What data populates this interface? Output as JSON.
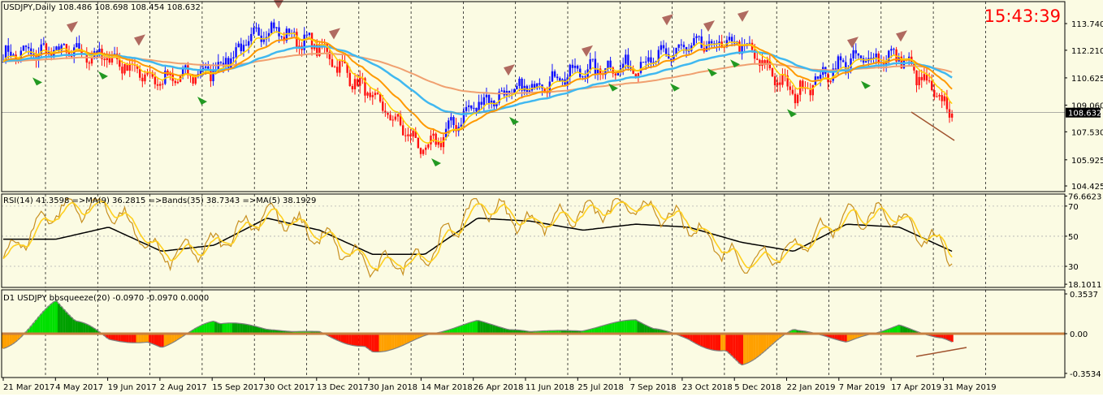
{
  "colors": {
    "background": "#fbfbe3",
    "grid": "#000000",
    "bull_candle": "#1010ff",
    "bear_candle": "#ff1010",
    "ema_fast": "#ffd000",
    "ema_mid": "#ff9900",
    "ema_blue": "#40b8f0",
    "sma_slow": "#f0a070",
    "rsi_line": "#c89020",
    "rsi_ma": "#ffd020",
    "rsi_bands": "#000000",
    "histo_green_dark": "#00a000",
    "histo_green_light": "#00e000",
    "histo_red": "#ff1000",
    "histo_orange": "#ffa000",
    "clock": "#ff0000",
    "divergence": "#a0522d"
  },
  "price_panel": {
    "header": "USDJPY,Daily  108.486 108.698 108.454 108.632",
    "clock": "15:43:39",
    "current_price": "108.632",
    "y_labels": [
      "113.740",
      "112.210",
      "110.625",
      "109.060",
      "107.530",
      "105.925",
      "104.425"
    ],
    "y_values": [
      113.74,
      112.21,
      110.625,
      109.06,
      107.53,
      105.925,
      104.425
    ],
    "y_range": [
      104.1,
      115.0
    ],
    "current_value": 108.632
  },
  "rsi_panel": {
    "header": "RSI(14) 41.3598  =>MA(9) 36.2815  =>Bands(35) 38.7343  =>MA(5) 38.1929",
    "y_labels": [
      "76.6623",
      "70",
      "50",
      "30",
      "18.1011"
    ],
    "y_values": [
      76.6623,
      70,
      50,
      30,
      18.1011
    ],
    "y_range": [
      16,
      78
    ]
  },
  "squeeze_panel": {
    "header": "D1 USDJPY bbsqueeze(20) -0.0970 -0.0970 0.0000",
    "y_labels": [
      "0.3537",
      "0.00",
      "-0.3534"
    ],
    "y_values": [
      0.3537,
      0.0,
      -0.3534
    ],
    "y_range": [
      -0.39,
      0.39
    ]
  },
  "time_axis": {
    "labels": [
      "21 Mar 2017",
      "4 May 2017",
      "19 Jun 2017",
      "2 Aug 2017",
      "15 Sep 2017",
      "30 Oct 2017",
      "13 Dec 2017",
      "30 Jan 2018",
      "14 Mar 2018",
      "26 Apr 2018",
      "11 Jun 2018",
      "25 Jul 2018",
      "7 Sep 2018",
      "23 Oct 2018",
      "5 Dec 2018",
      "22 Jan 2019",
      "7 Mar 2019",
      "17 Apr 2019",
      "31 May 2019"
    ]
  },
  "chart_data": [
    {
      "type": "line",
      "name": "USDJPY Daily",
      "title": "USDJPY,Daily",
      "x": [
        "21 Mar 2017",
        "4 May 2017",
        "19 Jun 2017",
        "2 Aug 2017",
        "15 Sep 2017",
        "30 Oct 2017",
        "13 Dec 2017",
        "30 Jan 2018",
        "14 Mar 2018",
        "26 Apr 2018",
        "11 Jun 2018",
        "25 Jul 2018",
        "7 Sep 2018",
        "23 Oct 2018",
        "5 Dec 2018",
        "22 Jan 2019",
        "7 Mar 2019",
        "17 Apr 2019",
        "31 May 2019"
      ],
      "series": [
        {
          "values": [
            111.9,
            112.2,
            111.8,
            110.4,
            111.1,
            113.5,
            112.4,
            109.5,
            106.4,
            109.2,
            110.1,
            111.1,
            111.3,
            112.4,
            112.6,
            109.7,
            111.6,
            111.9,
            108.6
          ]
        }
      ],
      "ylim": [
        104.425,
        113.74
      ],
      "grid": true
    },
    {
      "type": "line",
      "title": "RSI(14) 41.3598  =>MA(9) 36.2815  =>Bands(35) 38.7343  =>MA(5) 38.1929",
      "x": [
        "21 Mar 2017",
        "4 May 2017",
        "19 Jun 2017",
        "2 Aug 2017",
        "15 Sep 2017",
        "30 Oct 2017",
        "13 Dec 2017",
        "30 Jan 2018",
        "14 Mar 2018",
        "26 Apr 2018",
        "11 Jun 2018",
        "25 Jul 2018",
        "7 Sep 2018",
        "23 Oct 2018",
        "5 Dec 2018",
        "22 Jan 2019",
        "7 Mar 2019",
        "17 Apr 2019",
        "31 May 2019"
      ],
      "series": [
        {
          "values": [
            36,
            68,
            70,
            36,
            44,
            66,
            50,
            30,
            36,
            72,
            58,
            66,
            70,
            58,
            32,
            42,
            64,
            62,
            38
          ]
        },
        {
          "values": [
            48,
            48,
            56,
            40,
            44,
            62,
            54,
            38,
            38,
            62,
            60,
            54,
            58,
            56,
            46,
            40,
            58,
            56,
            40
          ]
        }
      ],
      "ylim": [
        18.1011,
        76.6623
      ]
    },
    {
      "type": "bar",
      "title": "D1 USDJPY bbsqueeze(20) -0.0970 -0.0970 0.0000",
      "categories": [
        "21 Mar 2017",
        "4 May 2017",
        "19 Jun 2017",
        "2 Aug 2017",
        "15 Sep 2017",
        "30 Oct 2017",
        "13 Dec 2017",
        "30 Jan 2018",
        "14 Mar 2018",
        "26 Apr 2018",
        "11 Jun 2018",
        "25 Jul 2018",
        "7 Sep 2018",
        "23 Oct 2018",
        "5 Dec 2018",
        "22 Jan 2019",
        "7 Mar 2019",
        "17 Apr 2019",
        "31 May 2019"
      ],
      "values": [
        -0.22,
        0.33,
        -0.05,
        -0.15,
        0.16,
        0.04,
        0.02,
        -0.22,
        -0.02,
        0.12,
        0.02,
        0.04,
        0.14,
        -0.05,
        -0.33,
        0.06,
        -0.08,
        0.08,
        -0.097
      ],
      "ylim": [
        -0.3534,
        0.3537
      ]
    }
  ]
}
